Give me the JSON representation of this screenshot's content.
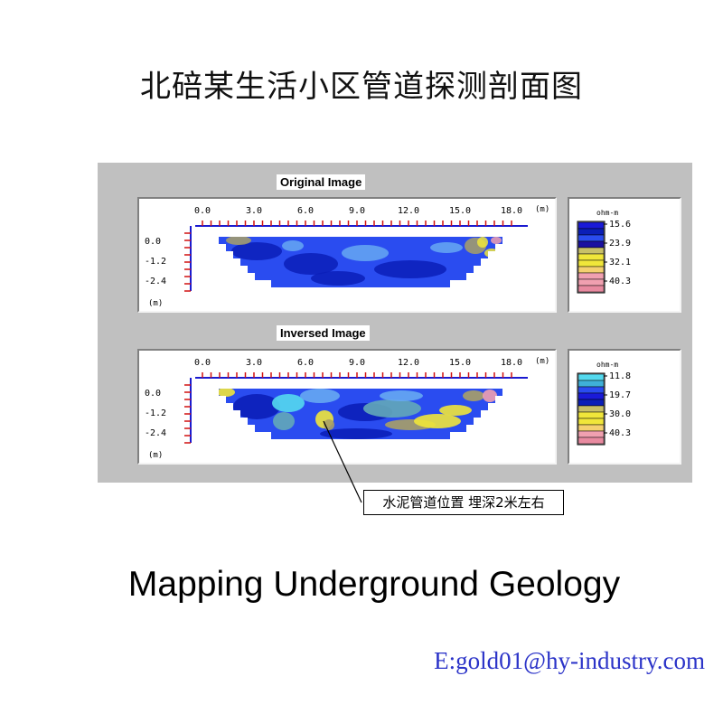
{
  "title": "北碚某生活小区管道探测剖面图",
  "heading": "Mapping Underground Geology",
  "email": "E:gold01@hy-industry.com",
  "annotation": "水泥管道位置 埋深2米左右",
  "colors": {
    "panel_bg": "#c0c0c0",
    "deep_blue": "#0b1fb8",
    "mid_blue": "#2a4cf0",
    "light_blue": "#66a8f2",
    "cyan": "#54d9ee",
    "teal": "#63a9b8",
    "yellow": "#f0e63a",
    "olive": "#a8a066",
    "pink": "#f0a0b0",
    "axis_red": "#d01010",
    "axis_blue": "#1a1ad0"
  },
  "sections": [
    {
      "subtitle": "Original Image",
      "x_ticks": [
        "0.0",
        "3.0",
        "6.0",
        "9.0",
        "12.0",
        "15.0",
        "18.0"
      ],
      "x_unit": "(m)",
      "y_ticks": [
        "0.0",
        "-1.2",
        "-2.4"
      ],
      "y_unit": "(m)",
      "legend": {
        "unit": "ohm-m",
        "values": [
          "15.6",
          "23.9",
          "32.1",
          "40.3"
        ],
        "swatches": [
          "#1a1ad8",
          "#0b1fb8",
          "#2a4cf0",
          "#1a10a0",
          "#c8c068",
          "#f0e63a",
          "#f0e63a",
          "#f4d070",
          "#f0a0b0",
          "#f0a0b0",
          "#e88aa0"
        ]
      }
    },
    {
      "subtitle": "Inversed Image",
      "x_ticks": [
        "0.0",
        "3.0",
        "6.0",
        "9.0",
        "12.0",
        "15.0",
        "18.0"
      ],
      "x_unit": "(m)",
      "y_ticks": [
        "0.0",
        "-1.2",
        "-2.4"
      ],
      "y_unit": "(m)",
      "legend": {
        "unit": "ohm-m",
        "values": [
          "11.8",
          "19.7",
          "30.0",
          "40.3"
        ],
        "swatches": [
          "#54d9ee",
          "#3fb0d8",
          "#2a4cf0",
          "#1a1ad8",
          "#0b1fb8",
          "#c8c068",
          "#f0e63a",
          "#f0e63a",
          "#f4d070",
          "#f0a0b0",
          "#e88aa0"
        ]
      }
    }
  ]
}
